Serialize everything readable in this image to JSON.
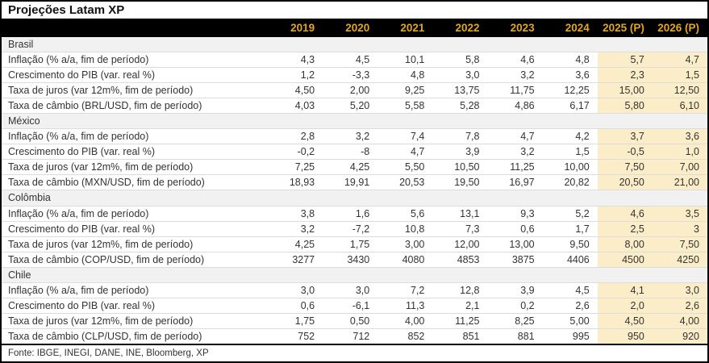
{
  "title": "Projeções Latam XP",
  "footer": "Fonte: IBGE, INEGI, DANE, INE, Bloomberg, XP",
  "colors": {
    "header_bg": "#000000",
    "header_text": "#E5A51F",
    "projection_highlight_bg": "#FBEDC8",
    "country_row_bg": "#F1F1F1",
    "row_divider": "#DCDCDC",
    "outer_border": "#000000"
  },
  "chart_data": {
    "type": "table",
    "title": "Projeções Latam XP",
    "columns": [
      "2019",
      "2020",
      "2021",
      "2022",
      "2023",
      "2024",
      "2025 (P)",
      "2026 (P)"
    ],
    "projection_columns": [
      "2025 (P)",
      "2026 (P)"
    ],
    "groups": [
      {
        "country": "Brasil",
        "rows": [
          {
            "label": "Inflação (% a/a, fim de período)",
            "values": [
              "4,3",
              "4,5",
              "10,1",
              "5,8",
              "4,6",
              "4,8",
              "5,7",
              "4,7"
            ]
          },
          {
            "label": "Crescimento do PIB (var. real %)",
            "values": [
              "1,2",
              "-3,3",
              "4,8",
              "3,0",
              "3,2",
              "3,6",
              "2,3",
              "1,5"
            ]
          },
          {
            "label": "Taxa de juros (var 12m%, fim de período)",
            "values": [
              "4,50",
              "2,00",
              "9,25",
              "13,75",
              "11,75",
              "12,25",
              "15,00",
              "12,50"
            ]
          },
          {
            "label": "Taxa de câmbio (BRL/USD, fim de período)",
            "values": [
              "4,03",
              "5,20",
              "5,58",
              "5,28",
              "4,86",
              "6,17",
              "5,80",
              "6,10"
            ]
          }
        ]
      },
      {
        "country": "México",
        "rows": [
          {
            "label": "Inflação (% a/a, fim de período)",
            "values": [
              "2,8",
              "3,2",
              "7,4",
              "7,8",
              "4,7",
              "4,2",
              "3,7",
              "3,6"
            ]
          },
          {
            "label": "Crescimento do PIB (var. real %)",
            "values": [
              "-0,2",
              "-8",
              "4,7",
              "3,9",
              "3,2",
              "1,5",
              "-0,5",
              "1,0"
            ]
          },
          {
            "label": "Taxa de juros (var 12m%, fim de período)",
            "values": [
              "7,25",
              "4,25",
              "5,50",
              "10,50",
              "11,25",
              "10,00",
              "7,50",
              "7,00"
            ]
          },
          {
            "label": "Taxa de câmbio (MXN/USD, fim de período)",
            "values": [
              "18,93",
              "19,91",
              "20,53",
              "19,50",
              "16,97",
              "20,82",
              "20,50",
              "21,00"
            ]
          }
        ]
      },
      {
        "country": "Colômbia",
        "rows": [
          {
            "label": "Inflação (% a/a, fim de período)",
            "values": [
              "3,8",
              "1,6",
              "5,6",
              "13,1",
              "9,3",
              "5,2",
              "4,6",
              "3,5"
            ]
          },
          {
            "label": "Crescimento do PIB (var. real %)",
            "values": [
              "3,2",
              "-7,2",
              "10,8",
              "7,3",
              "0,6",
              "1,7",
              "2,5",
              "3"
            ]
          },
          {
            "label": "Taxa de juros (var 12m%, fim de período)",
            "values": [
              "4,25",
              "1,75",
              "3,00",
              "12,00",
              "13,00",
              "9,50",
              "8,00",
              "7,50"
            ]
          },
          {
            "label": "Taxa de câmbio (COP/USD, fim de período)",
            "values": [
              "3277",
              "3430",
              "4080",
              "4853",
              "3875",
              "4406",
              "4500",
              "4250"
            ]
          }
        ]
      },
      {
        "country": "Chile",
        "rows": [
          {
            "label": "Inflação (% a/a, fim de período)",
            "values": [
              "3,0",
              "3,0",
              "7,2",
              "12,8",
              "3,9",
              "4,5",
              "4,1",
              "3,0"
            ]
          },
          {
            "label": "Crescimento do PIB (var. real %)",
            "values": [
              "0,6",
              "-6,1",
              "11,3",
              "2,1",
              "0,2",
              "2,6",
              "2,0",
              "2,6"
            ]
          },
          {
            "label": "Taxa de juros (var 12m%, fim de período)",
            "values": [
              "1,75",
              "0,50",
              "4,00",
              "11,25",
              "8,25",
              "5,00",
              "4,50",
              "4,00"
            ]
          },
          {
            "label": "Taxa de câmbio (CLP/USD, fim de período)",
            "values": [
              "752",
              "712",
              "852",
              "851",
              "881",
              "995",
              "950",
              "920"
            ]
          }
        ]
      }
    ]
  }
}
